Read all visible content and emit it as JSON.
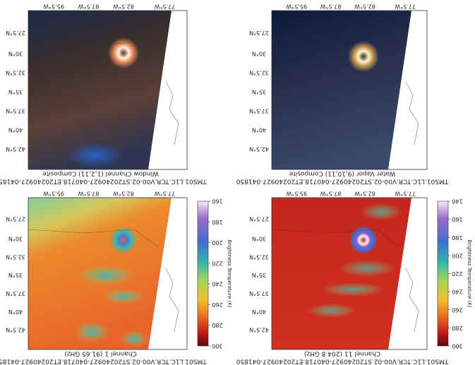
{
  "lon_labels": [
    "95.5°W",
    "87.5°W",
    "82.5°W",
    "77.5°W"
  ],
  "lat_labels": [
    "27.5°N",
    "30°N",
    "32.5°N",
    "35°N",
    "37.5°N",
    "40°N",
    "42.5°N"
  ],
  "panels": [
    {
      "subtitle": "Window Channel (1,2,11) Composite",
      "title": "TMS01.L1C.TCR.V00-02.ST20240927-040718.ET20240927-041850"
    },
    {
      "subtitle": "Water Vapor (9,10,11) Composite",
      "title": "TMS01.L1C.TCR.V00-02.ST20240927-040718.ET20240927-041850"
    },
    {
      "subtitle": "Channel 1 (91.65 GHz)",
      "title": "TMS01.L1C.TCR.V00-02.ST20240927-040718.ET20240927-041850",
      "colorbar": {
        "label": "Brightness Temperature (K)",
        "lim": [
          160,
          300
        ],
        "ticks": [
          160,
          180,
          200,
          220,
          240,
          260,
          280,
          300
        ]
      }
    },
    {
      "subtitle": "Channel 11 (204.8 GHz)",
      "title": "TMS01.L1C.TCR.V00-02.ST20240927-040718.ET20240927-041850",
      "colorbar": {
        "label": "Brightness Temperature (K)",
        "lim": [
          140,
          300
        ],
        "ticks": [
          140,
          160,
          180,
          200,
          220,
          240,
          260,
          280,
          300
        ]
      }
    }
  ]
}
